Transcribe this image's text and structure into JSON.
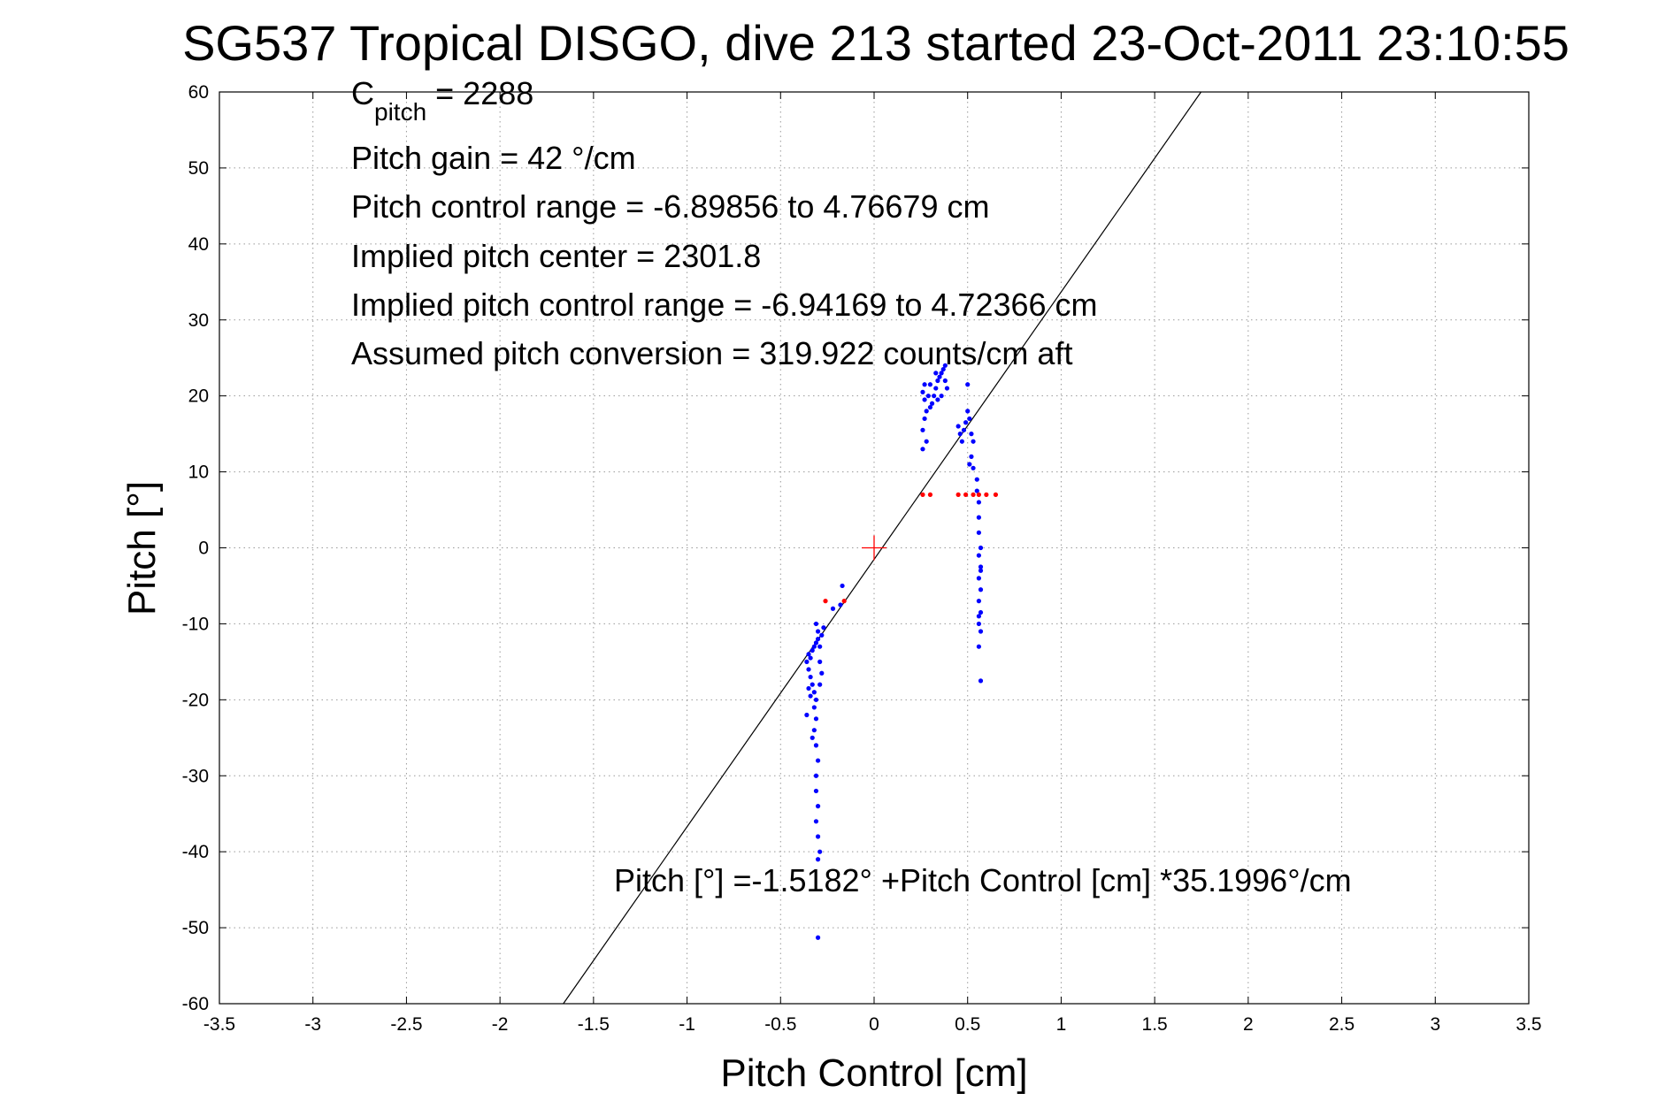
{
  "chart_data": {
    "type": "scatter",
    "title": "SG537 Tropical DISGO, dive 213 started 23-Oct-2011 23:10:55",
    "xlabel": "Pitch Control [cm]",
    "ylabel": "Pitch [°]",
    "xlim": [
      -3.5,
      3.5
    ],
    "ylim": [
      -60,
      60
    ],
    "xticks": [
      -3.5,
      -3,
      -2.5,
      -2,
      -1.5,
      -1,
      -0.5,
      0,
      0.5,
      1,
      1.5,
      2,
      2.5,
      3,
      3.5
    ],
    "yticks": [
      -60,
      -50,
      -40,
      -30,
      -20,
      -10,
      0,
      10,
      20,
      30,
      40,
      50,
      60
    ],
    "xtick_labels": [
      "-3.5",
      "-3",
      "-2.5",
      "-2",
      "-1.5",
      "-1",
      "-0.5",
      "0",
      "0.5",
      "1",
      "1.5",
      "2",
      "2.5",
      "3",
      "3.5"
    ],
    "ytick_labels": [
      "-60",
      "-50",
      "-40",
      "-30",
      "-20",
      "-10",
      "0",
      "10",
      "20",
      "30",
      "40",
      "50",
      "60"
    ],
    "grid": true,
    "fit_line": {
      "intercept": -1.5182,
      "slope": 35.1996,
      "color": "#000000"
    },
    "center_marker": {
      "x": 0,
      "y": 0,
      "color": "#ff0000"
    },
    "annotations": {
      "c_pitch_main": "C",
      "c_pitch_sub": "pitch",
      "c_pitch_value": " = 2288",
      "pitch_gain": "Pitch gain = 42 °/cm",
      "pitch_control_range": "Pitch control range = -6.89856 to 4.76679 cm",
      "implied_pitch_center": "Implied pitch center = 2301.8",
      "implied_pitch_control_range": "Implied pitch control range = -6.94169 to 4.72366 cm",
      "assumed_pitch_conversion": "Assumed pitch conversion = 319.922 counts/cm aft",
      "fit_equation": "Pitch [°] =-1.5182° +Pitch Control [cm] *35.1996°/cm"
    },
    "series": [
      {
        "color": "#0000ff",
        "points": [
          [
            -0.3,
            -51.3
          ],
          [
            -0.3,
            -41.0
          ],
          [
            -0.29,
            -40.0
          ],
          [
            -0.3,
            -38.0
          ],
          [
            -0.31,
            -36.0
          ],
          [
            -0.3,
            -34.0
          ],
          [
            -0.31,
            -32.0
          ],
          [
            -0.31,
            -30.0
          ],
          [
            -0.3,
            -28.0
          ],
          [
            -0.31,
            -26.0
          ],
          [
            -0.32,
            -24.0
          ],
          [
            -0.31,
            -22.5
          ],
          [
            -0.32,
            -21.0
          ],
          [
            -0.31,
            -20.0
          ],
          [
            -0.32,
            -19.0
          ],
          [
            -0.33,
            -18.0
          ],
          [
            -0.34,
            -19.5
          ],
          [
            -0.35,
            -18.5
          ],
          [
            -0.34,
            -17.0
          ],
          [
            -0.35,
            -16.0
          ],
          [
            -0.36,
            -15.0
          ],
          [
            -0.35,
            -14.0
          ],
          [
            -0.34,
            -14.5
          ],
          [
            -0.33,
            -13.5
          ],
          [
            -0.32,
            -13.0
          ],
          [
            -0.31,
            -12.5
          ],
          [
            -0.3,
            -12.0
          ],
          [
            -0.29,
            -13.0
          ],
          [
            -0.3,
            -11.0
          ],
          [
            -0.31,
            -10.0
          ],
          [
            -0.29,
            -15.0
          ],
          [
            -0.28,
            -16.5
          ],
          [
            -0.29,
            -18.0
          ],
          [
            -0.28,
            -11.5
          ],
          [
            -0.27,
            -10.5
          ],
          [
            -0.22,
            -8.0
          ],
          [
            -0.18,
            -7.5
          ],
          [
            -0.17,
            -5.0
          ],
          [
            -0.36,
            -22.0
          ],
          [
            -0.33,
            -25.0
          ],
          [
            0.26,
            13.0
          ],
          [
            0.26,
            15.5
          ],
          [
            0.27,
            17.0
          ],
          [
            0.28,
            18.0
          ],
          [
            0.27,
            19.5
          ],
          [
            0.26,
            20.5
          ],
          [
            0.27,
            21.5
          ],
          [
            0.29,
            20.0
          ],
          [
            0.3,
            18.5
          ],
          [
            0.31,
            19.0
          ],
          [
            0.32,
            20.0
          ],
          [
            0.33,
            21.0
          ],
          [
            0.34,
            22.0
          ],
          [
            0.35,
            22.5
          ],
          [
            0.36,
            23.0
          ],
          [
            0.37,
            23.5
          ],
          [
            0.38,
            22.0
          ],
          [
            0.39,
            21.0
          ],
          [
            0.36,
            20.0
          ],
          [
            0.34,
            19.5
          ],
          [
            0.33,
            23.0
          ],
          [
            0.38,
            24.0
          ],
          [
            0.3,
            21.5
          ],
          [
            0.28,
            14.0
          ],
          [
            0.45,
            16.0
          ],
          [
            0.46,
            15.0
          ],
          [
            0.47,
            14.0
          ],
          [
            0.48,
            15.5
          ],
          [
            0.49,
            16.5
          ],
          [
            0.5,
            18.0
          ],
          [
            0.51,
            17.0
          ],
          [
            0.52,
            15.0
          ],
          [
            0.53,
            14.0
          ],
          [
            0.52,
            12.0
          ],
          [
            0.53,
            10.5
          ],
          [
            0.5,
            21.5
          ],
          [
            0.51,
            11.0
          ],
          [
            0.55,
            9.0
          ],
          [
            0.55,
            7.5
          ],
          [
            0.56,
            6.0
          ],
          [
            0.56,
            4.0
          ],
          [
            0.56,
            2.0
          ],
          [
            0.57,
            0.0
          ],
          [
            0.56,
            -1.0
          ],
          [
            0.57,
            -2.5
          ],
          [
            0.56,
            -4.0
          ],
          [
            0.57,
            -5.5
          ],
          [
            0.56,
            -7.0
          ],
          [
            0.57,
            -8.5
          ],
          [
            0.56,
            -10.0
          ],
          [
            0.57,
            -11.0
          ],
          [
            0.56,
            -13.0
          ],
          [
            0.57,
            -17.5
          ],
          [
            0.56,
            -9.0
          ],
          [
            0.57,
            -3.0
          ]
        ]
      },
      {
        "color": "#ff0000",
        "points": [
          [
            -0.26,
            -7.0
          ],
          [
            -0.16,
            -7.0
          ],
          [
            0.26,
            7.0
          ],
          [
            0.3,
            7.0
          ],
          [
            0.45,
            7.0
          ],
          [
            0.49,
            7.0
          ],
          [
            0.53,
            7.0
          ],
          [
            0.56,
            7.0
          ],
          [
            0.6,
            7.0
          ],
          [
            0.65,
            7.0
          ]
        ]
      }
    ]
  }
}
